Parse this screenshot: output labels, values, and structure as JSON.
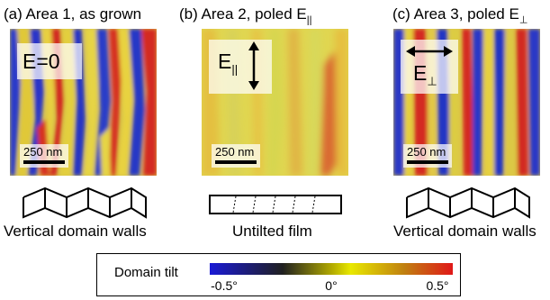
{
  "panels": [
    {
      "title": "(a) Area 1, as grown",
      "field_label": "E=0",
      "scale_label": "250 nm",
      "caption": "Vertical domain walls"
    },
    {
      "title_main": "(b) Area 2, poled E",
      "title_sub": "||",
      "field_main": "E",
      "field_sub": "||",
      "scale_label": "250 nm",
      "caption": "Untilted film"
    },
    {
      "title_main": "(c) Area 3, poled E",
      "title_sub": "⊥",
      "field_main": "E",
      "field_sub": "⊥",
      "scale_label": "250 nm",
      "caption": "Vertical domain walls"
    }
  ],
  "legend": {
    "title": "Domain tilt",
    "ticks": [
      "-0.5°",
      "0°",
      "0.5°"
    ],
    "colors": [
      "#1a1ad6",
      "#e8e800",
      "#e01818"
    ]
  },
  "colors": {
    "blue": "#2030d0",
    "yellow": "#e6d640",
    "red": "#d83020",
    "olive": "#c8c030"
  }
}
